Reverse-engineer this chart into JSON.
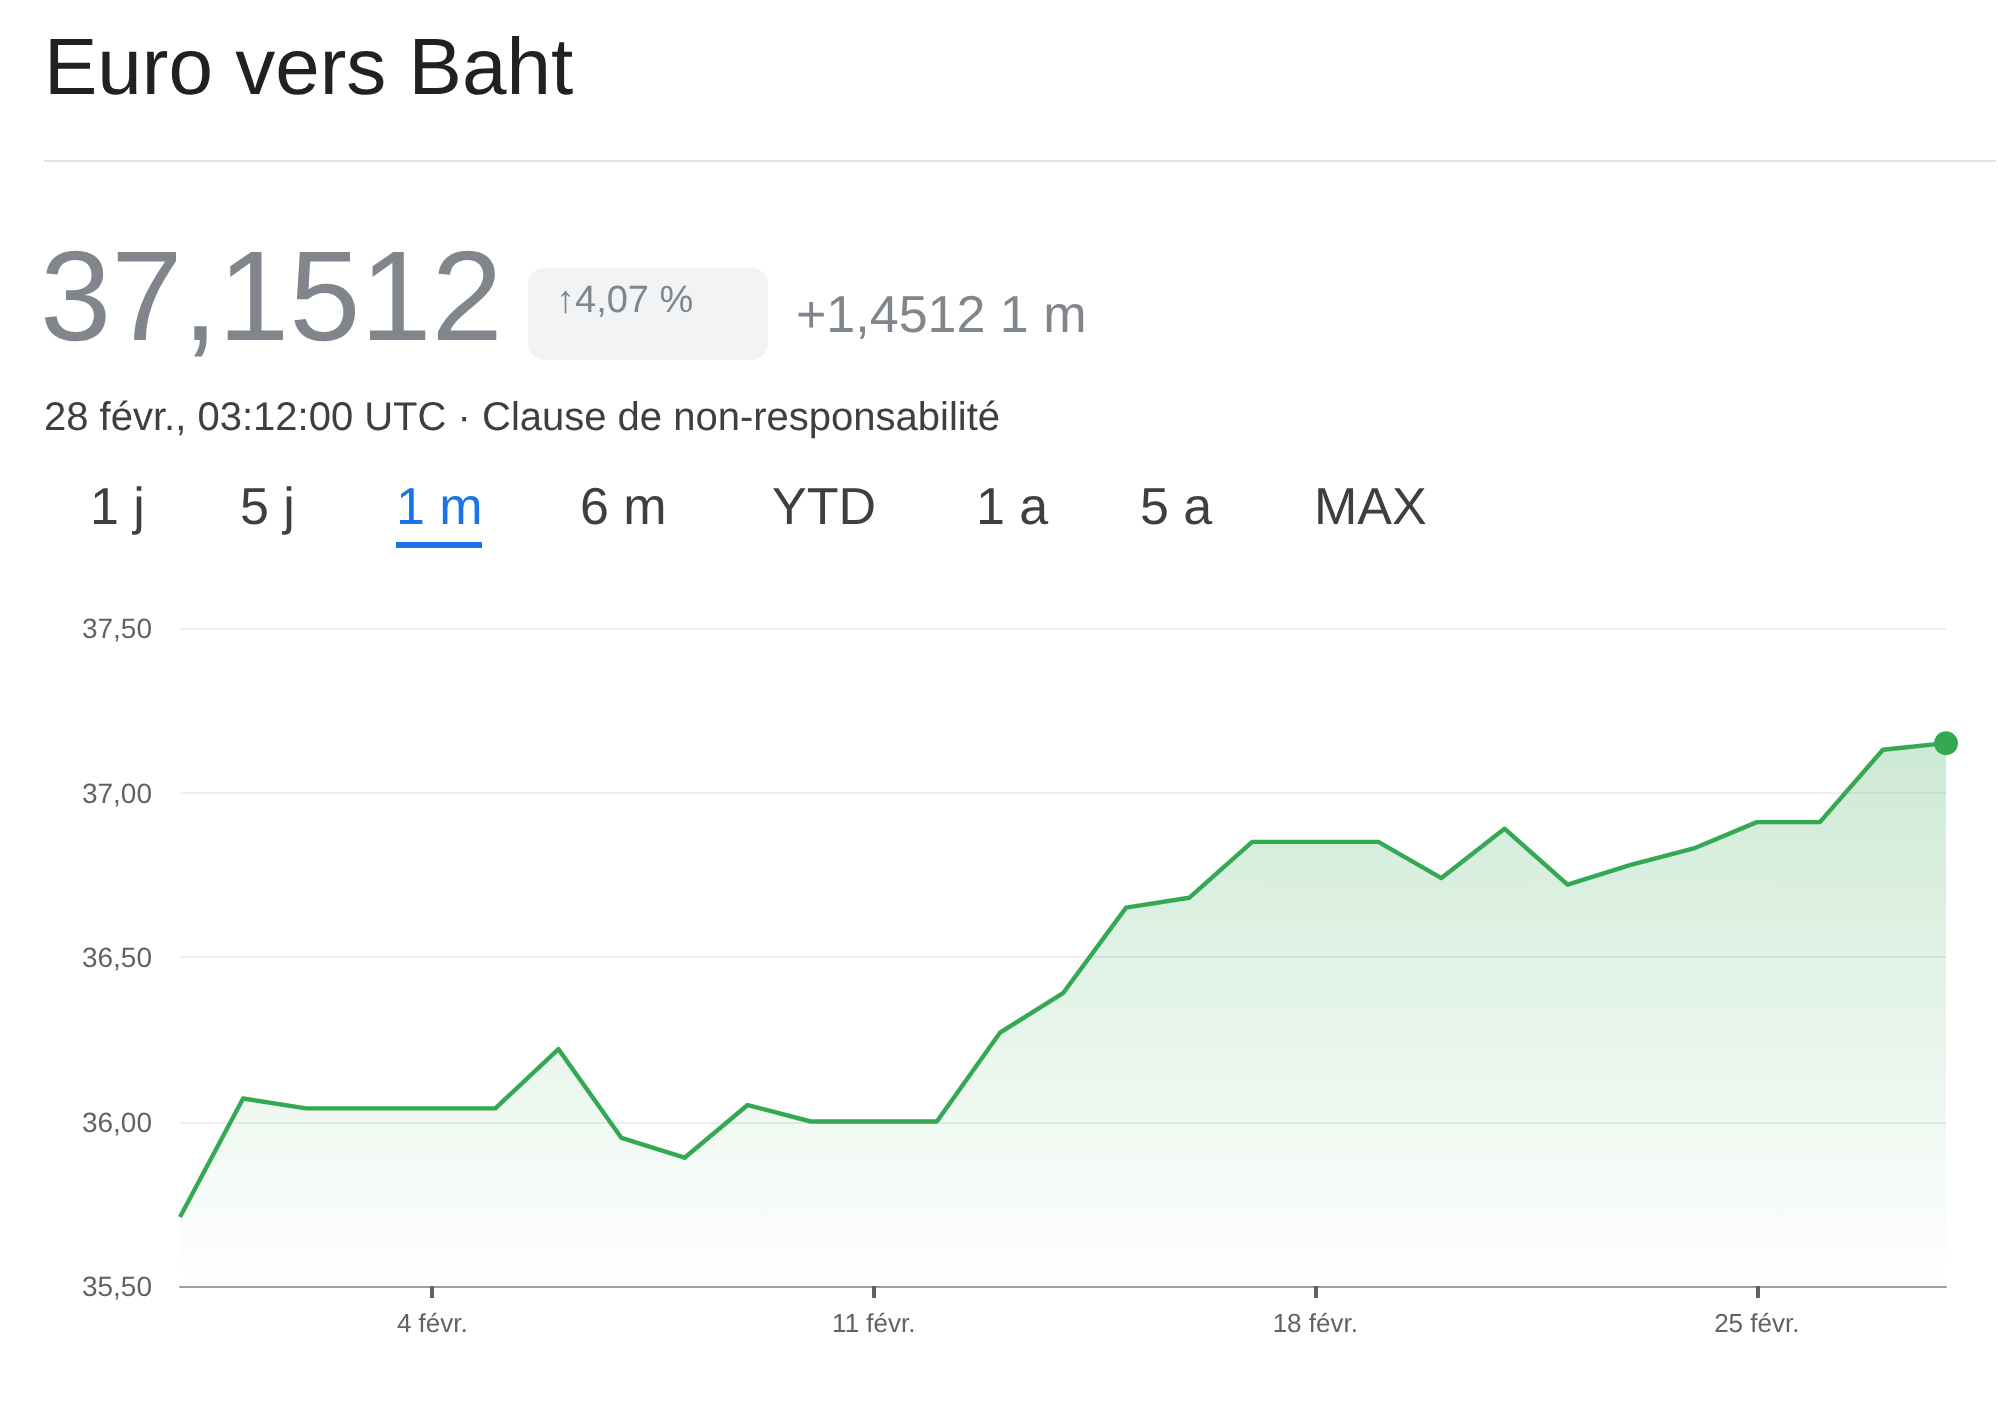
{
  "chart_data": {
    "type": "area",
    "title": "Euro vers Baht",
    "annotations": [
      "37,1512",
      "↑4,07 %",
      "+1,4512 1 m",
      "28 févr., 03:12:00 UTC · Clause de non-responsabilité",
      "1 j",
      "5 j",
      "1 m",
      "6 m",
      "YTD",
      "1 a",
      "5 a",
      "MAX"
    ],
    "x": [
      "--01-31",
      "--02-01",
      "--02-02",
      "--02-03",
      "--02-04",
      "--02-05",
      "--02-06",
      "--02-07",
      "--02-08",
      "--02-09",
      "--02-10",
      "--02-11",
      "--02-12",
      "--02-13",
      "--02-14",
      "--02-15",
      "--02-16",
      "--02-17",
      "--02-18",
      "--02-19",
      "--02-20",
      "--02-21",
      "--02-22",
      "--02-23",
      "--02-24",
      "--02-25",
      "--02-26",
      "--02-27",
      "--02-28"
    ],
    "series": [
      {
        "color": "#34a853",
        "values": [
          35.71,
          36.07,
          36.04,
          36.04,
          36.04,
          36.04,
          36.22,
          35.95,
          35.89,
          36.05,
          36.0,
          36.0,
          36.0,
          36.27,
          36.39,
          36.65,
          36.68,
          36.85,
          36.85,
          36.85,
          36.74,
          36.89,
          36.72,
          36.78,
          36.83,
          36.91,
          36.91,
          37.13,
          37.15
        ]
      }
    ],
    "xlim": [
      "--01-31",
      "--02-28"
    ],
    "xticks": [
      {
        "value": "--02-04",
        "label": "4 févr."
      },
      {
        "value": "--02-11",
        "label": "11 févr."
      },
      {
        "value": "--02-18",
        "label": "18 févr."
      },
      {
        "value": "--02-25",
        "label": "25 févr."
      }
    ],
    "ylim": [
      35.5,
      37.5
    ],
    "yticks": [
      {
        "value": 35.5,
        "label": "35,50"
      },
      {
        "value": 36,
        "label": "36,00"
      },
      {
        "value": 36.5,
        "label": "36,50"
      },
      {
        "value": 37,
        "label": "37,00"
      },
      {
        "value": 37.5,
        "label": "37,50"
      }
    ],
    "grid": "y"
  }
}
